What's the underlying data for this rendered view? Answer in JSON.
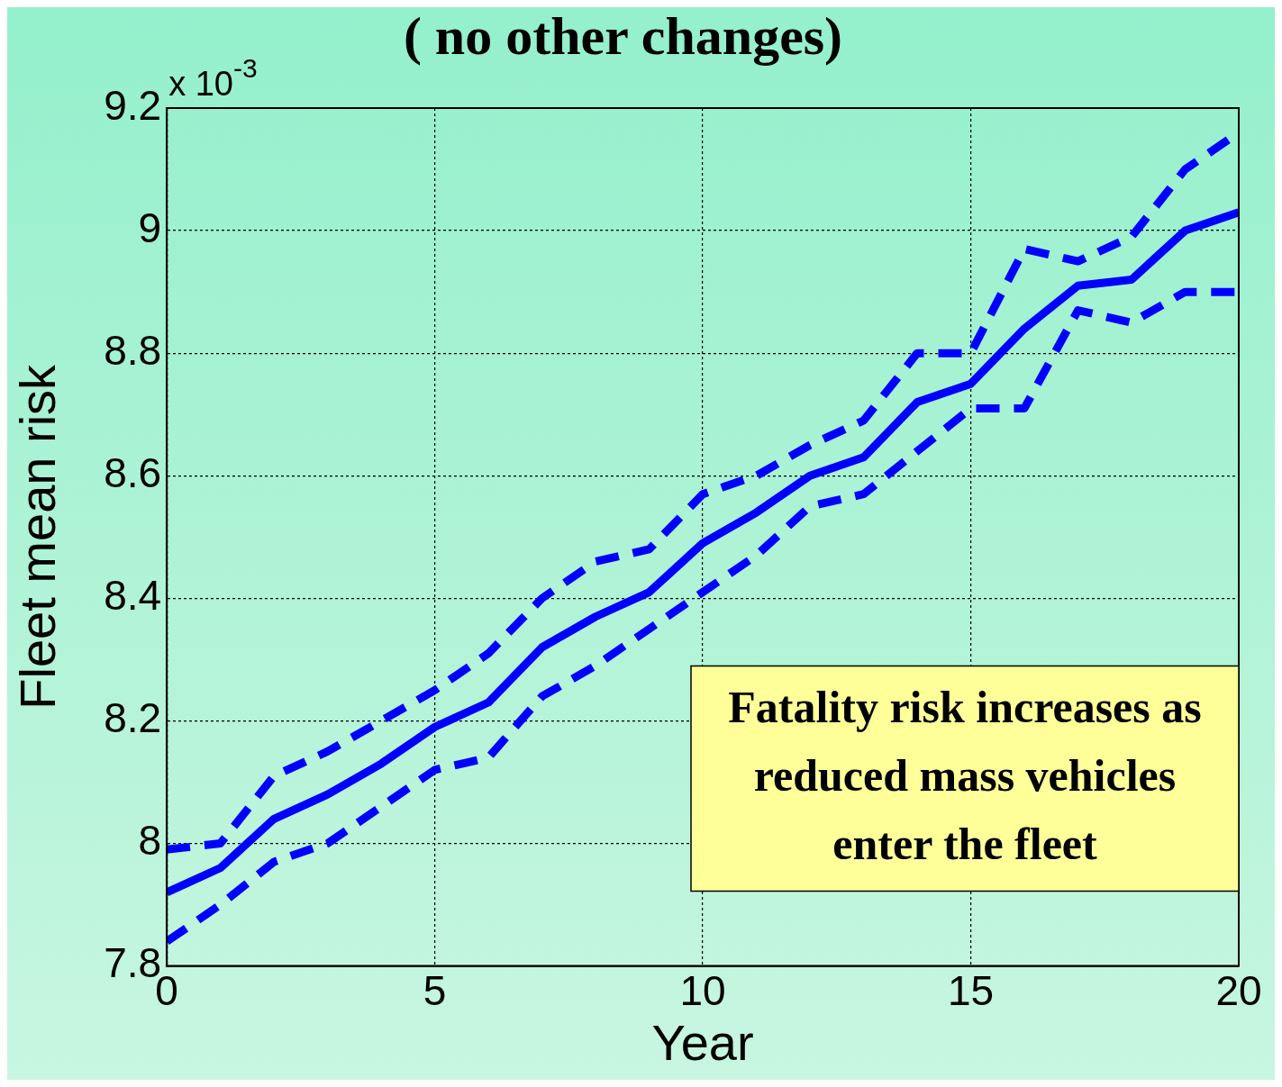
{
  "chart_data": {
    "type": "line",
    "title": "( no other changes)",
    "xlabel": "Year",
    "ylabel": "Fleet mean risk",
    "x": [
      0,
      1,
      2,
      3,
      4,
      5,
      6,
      7,
      8,
      9,
      10,
      11,
      12,
      13,
      14,
      15,
      16,
      17,
      18,
      19,
      20
    ],
    "series": [
      {
        "color": "#0000ff",
        "line_style": "solid",
        "values": [
          7.92,
          7.96,
          8.04,
          8.08,
          8.13,
          8.19,
          8.23,
          8.32,
          8.37,
          8.41,
          8.49,
          8.54,
          8.6,
          8.63,
          8.72,
          8.75,
          8.84,
          8.91,
          8.92,
          9.0,
          9.03
        ]
      },
      {
        "color": "#0000ff",
        "line_style": "dashed",
        "values": [
          7.99,
          8.0,
          8.11,
          8.15,
          8.2,
          8.25,
          8.31,
          8.4,
          8.46,
          8.48,
          8.57,
          8.6,
          8.65,
          8.69,
          8.8,
          8.8,
          8.97,
          8.95,
          8.99,
          9.1,
          9.16
        ]
      },
      {
        "color": "#0000ff",
        "line_style": "dashed",
        "values": [
          7.84,
          7.9,
          7.97,
          8.0,
          8.06,
          8.12,
          8.14,
          8.24,
          8.29,
          8.35,
          8.41,
          8.47,
          8.55,
          8.57,
          8.64,
          8.71,
          8.71,
          8.87,
          8.85,
          8.9,
          8.9
        ]
      }
    ],
    "xlim": [
      0,
      20
    ],
    "xticks": [
      0,
      5,
      10,
      15,
      20
    ],
    "ylim": [
      7.8,
      9.2
    ],
    "yticks": [
      7.8,
      8,
      8.2,
      8.4,
      8.6,
      8.8,
      9,
      9.2
    ],
    "grid": true,
    "marker": "none",
    "legend": false,
    "annotations": [
      "x 10$^{-3}$",
      "Fatality risk increases as reduced mass vehicles enter the fleet"
    ]
  }
}
